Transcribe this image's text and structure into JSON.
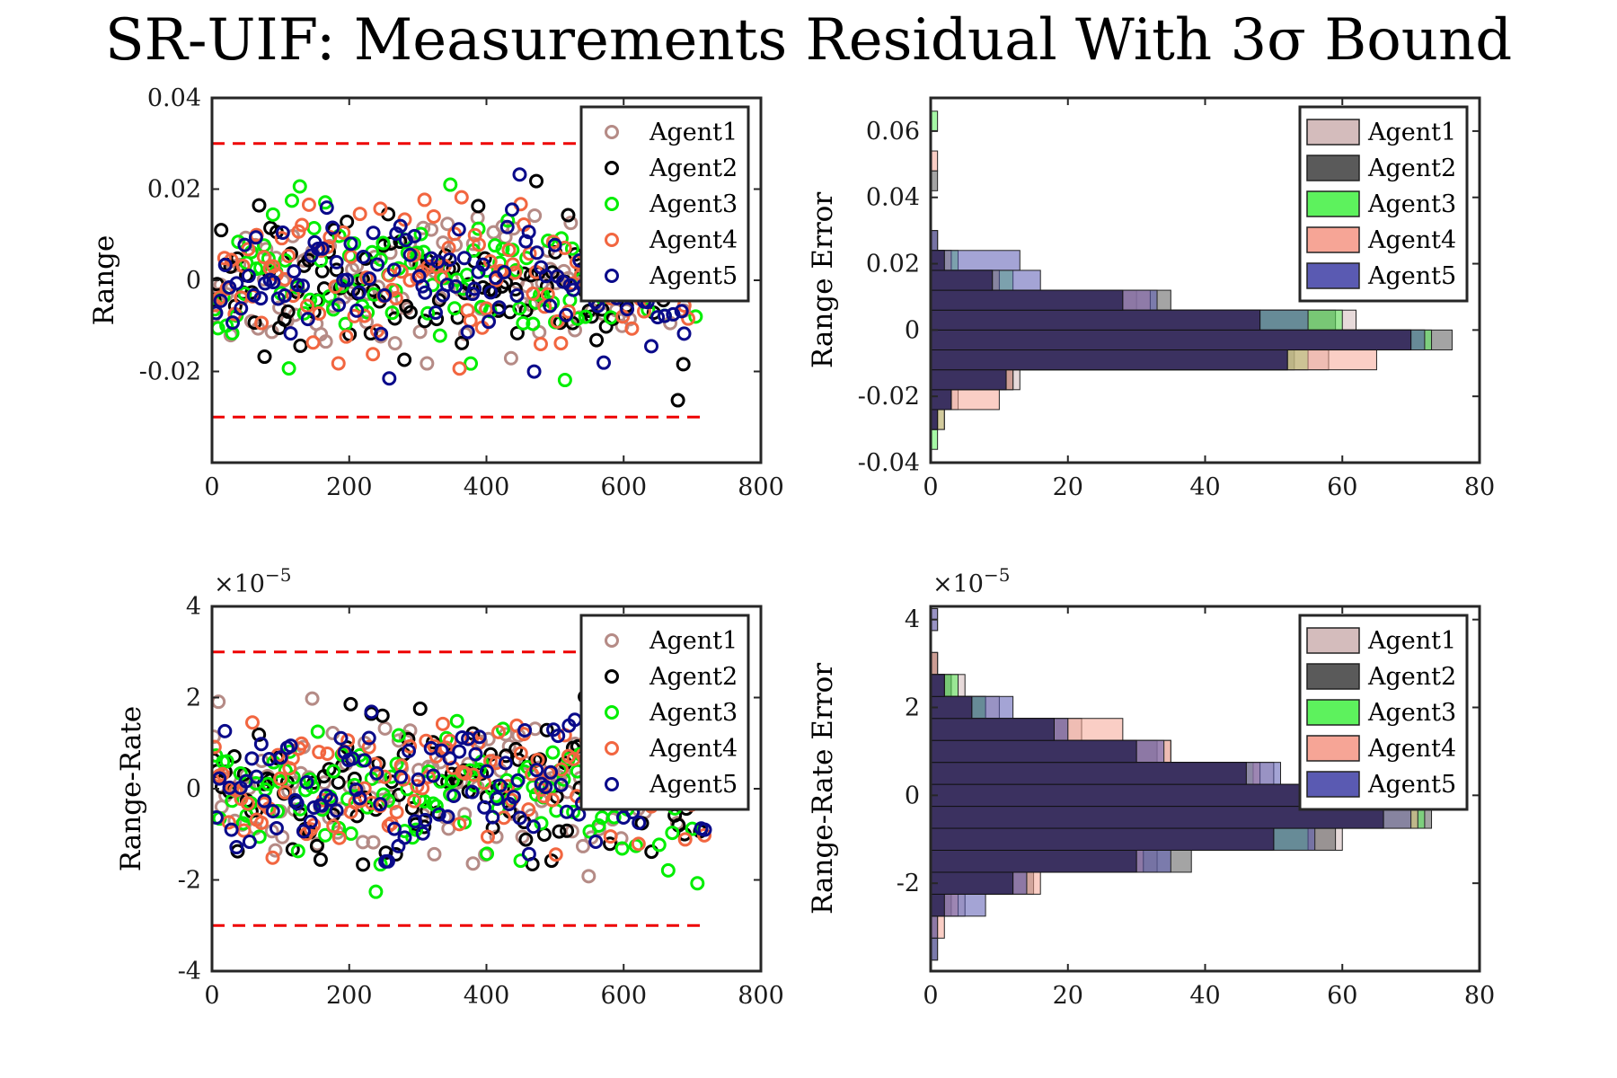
{
  "figure_title": "SR-UIF: Measurements Residual With 3σ Bound",
  "agents": [
    {
      "name": "Agent1",
      "scatter_color": "#b58b86",
      "hist_color": "#d4bcbc"
    },
    {
      "name": "Agent2",
      "scatter_color": "#000000",
      "hist_color": "#5a5a5a"
    },
    {
      "name": "Agent3",
      "scatter_color": "#00ee00",
      "hist_color": "#5df25d"
    },
    {
      "name": "Agent4",
      "scatter_color": "#f26640",
      "hist_color": "#f6a596"
    },
    {
      "name": "Agent5",
      "scatter_color": "#0a0a8a",
      "hist_color": "#5a5ab2"
    }
  ],
  "bound_color": "#ee0000",
  "chart_data": [
    {
      "id": "range-residual",
      "type": "scatter",
      "ylabel": "Range",
      "xlabel": "",
      "exponent_label": "",
      "xlim": [
        0,
        800
      ],
      "ylim": [
        -0.04,
        0.04
      ],
      "xticks": [
        0,
        200,
        400,
        600,
        800
      ],
      "xtick_labels": [
        "0",
        "200",
        "400",
        "600",
        "800"
      ],
      "yticks": [
        -0.02,
        0,
        0.02,
        0.04
      ],
      "ytick_labels": [
        "-0.02",
        "0",
        "0.02",
        "0.04"
      ],
      "bounds": [
        0.03,
        -0.03
      ],
      "n_samples": 720,
      "noise_sigma": 0.0105,
      "legend_position": "top-right"
    },
    {
      "id": "range-error-histogram",
      "type": "bar",
      "orientation": "horizontal",
      "ylabel": "Range Error",
      "xlabel": "",
      "exponent_label": "",
      "xlim": [
        0,
        80
      ],
      "ylim": [
        -0.04,
        0.07
      ],
      "xticks": [
        0,
        20,
        40,
        60,
        80
      ],
      "xtick_labels": [
        "0",
        "20",
        "40",
        "60",
        "80"
      ],
      "yticks": [
        -0.04,
        -0.02,
        0,
        0.02,
        0.04,
        0.06
      ],
      "ytick_labels": [
        "-0.04",
        "-0.02",
        "0",
        "0.02",
        "0.04",
        "0.06"
      ],
      "bin_centers": [
        -0.033,
        -0.027,
        -0.021,
        -0.015,
        -0.009,
        -0.003,
        0.003,
        0.009,
        0.015,
        0.021,
        0.027,
        0.033,
        0.039,
        0.045,
        0.051,
        0.057,
        0.063
      ],
      "bin_width": 0.006,
      "series": [
        {
          "name": "Agent1",
          "values": [
            0,
            1,
            4,
            13,
            58,
            72,
            62,
            30,
            9,
            3,
            1,
            0,
            0,
            0,
            0,
            0,
            0
          ]
        },
        {
          "name": "Agent2",
          "values": [
            0,
            1,
            3,
            12,
            53,
            76,
            59,
            35,
            10,
            2,
            1,
            0,
            0,
            1,
            0,
            0,
            0
          ]
        },
        {
          "name": "Agent3",
          "values": [
            1,
            2,
            3,
            11,
            55,
            73,
            60,
            28,
            12,
            4,
            0,
            0,
            0,
            0,
            0,
            0,
            1
          ]
        },
        {
          "name": "Agent4",
          "values": [
            0,
            2,
            10,
            12,
            65,
            70,
            48,
            32,
            10,
            3,
            0,
            0,
            0,
            0,
            1,
            0,
            0
          ]
        },
        {
          "name": "Agent5",
          "values": [
            0,
            1,
            3,
            11,
            52,
            72,
            55,
            33,
            16,
            13,
            1,
            0,
            0,
            0,
            0,
            0,
            0
          ]
        }
      ],
      "legend_position": "top-right"
    },
    {
      "id": "range-rate-residual",
      "type": "scatter",
      "ylabel": "Range-Rate",
      "xlabel": "",
      "exponent_label": "×10",
      "exponent_power": "−5",
      "xlim": [
        0,
        800
      ],
      "ylim": [
        -4,
        4
      ],
      "xticks": [
        0,
        200,
        400,
        600,
        800
      ],
      "xtick_labels": [
        "0",
        "200",
        "400",
        "600",
        "800"
      ],
      "yticks": [
        -4,
        -2,
        0,
        2,
        4
      ],
      "ytick_labels": [
        "-4",
        "-2",
        "0",
        "2",
        "4"
      ],
      "bounds": [
        3,
        -3
      ],
      "n_samples": 720,
      "noise_sigma": 1.1,
      "legend_position": "top-right"
    },
    {
      "id": "range-rate-error-histogram",
      "type": "bar",
      "orientation": "horizontal",
      "ylabel": "Range-Rate Error",
      "xlabel": "",
      "exponent_label": "×10",
      "exponent_power": "−5",
      "xlim": [
        0,
        80
      ],
      "ylim": [
        -4,
        4.3
      ],
      "xticks": [
        0,
        20,
        40,
        60,
        80
      ],
      "xtick_labels": [
        "0",
        "20",
        "40",
        "60",
        "80"
      ],
      "yticks": [
        -2,
        0,
        2,
        4
      ],
      "ytick_labels": [
        "-2",
        "0",
        "2",
        "4"
      ],
      "bin_centers": [
        -3.5,
        -3.0,
        -2.5,
        -2.0,
        -1.5,
        -1.0,
        -0.5,
        0.0,
        0.5,
        1.0,
        1.5,
        2.0,
        2.5,
        3.0,
        3.5,
        4.0
      ],
      "bin_width": 0.5,
      "series": [
        {
          "name": "Agent1",
          "values": [
            0,
            1,
            5,
            14,
            33,
            60,
            66,
            62,
            50,
            35,
            22,
            10,
            5,
            1,
            0,
            1
          ]
        },
        {
          "name": "Agent2",
          "values": [
            1,
            1,
            3,
            15,
            38,
            59,
            73,
            58,
            46,
            33,
            20,
            8,
            3,
            1,
            0,
            0
          ]
        },
        {
          "name": "Agent3",
          "values": [
            0,
            0,
            2,
            12,
            30,
            55,
            72,
            64,
            47,
            30,
            18,
            8,
            4,
            0,
            0,
            0
          ]
        },
        {
          "name": "Agent4",
          "values": [
            0,
            2,
            4,
            16,
            31,
            50,
            71,
            61,
            48,
            35,
            28,
            6,
            2,
            1,
            0,
            0
          ]
        },
        {
          "name": "Agent5",
          "values": [
            1,
            1,
            8,
            14,
            35,
            56,
            70,
            60,
            51,
            34,
            20,
            12,
            2,
            0,
            0,
            1
          ]
        }
      ],
      "legend_position": "top-right"
    }
  ]
}
